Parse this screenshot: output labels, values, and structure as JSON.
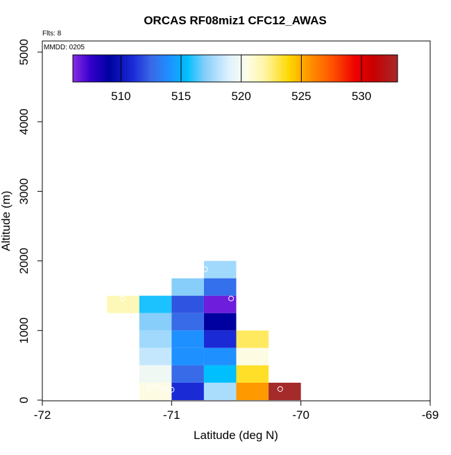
{
  "chart_data": {
    "type": "heatmap",
    "title": "ORCAS RF08miz1 CFC12_AWAS",
    "xlabel": "Latitude (deg N)",
    "ylabel": "Altitude (m)",
    "xlim": [
      -72,
      -69
    ],
    "ylim": [
      0,
      5200
    ],
    "x_ticks": [
      -72,
      -71,
      -70,
      -69
    ],
    "x_tick_labels": [
      "-72",
      "-71",
      "-70",
      "-69"
    ],
    "y_ticks": [
      0,
      1000,
      2000,
      3000,
      4000,
      5000
    ],
    "y_tick_labels": [
      "0",
      "1000",
      "2000",
      "3000",
      "4000",
      "5000"
    ],
    "annotations": {
      "flights": "Flts: 8",
      "date": "MMDD: 0205"
    },
    "colorbar": {
      "range": [
        506,
        533
      ],
      "ticks": [
        510,
        515,
        520,
        525,
        530
      ],
      "tick_labels": [
        "510",
        "515",
        "520",
        "525",
        "530"
      ],
      "stops": [
        {
          "value": 506,
          "color": "#8a2be2"
        },
        {
          "value": 507.5,
          "color": "#3300cc"
        },
        {
          "value": 509,
          "color": "#0000a0"
        },
        {
          "value": 511,
          "color": "#1a2bd6"
        },
        {
          "value": 512.5,
          "color": "#3a68e6"
        },
        {
          "value": 514,
          "color": "#1e90ff"
        },
        {
          "value": 515.5,
          "color": "#00bfff"
        },
        {
          "value": 517,
          "color": "#87cefa"
        },
        {
          "value": 519,
          "color": "#dff2ff"
        },
        {
          "value": 520.5,
          "color": "#fdfde8"
        },
        {
          "value": 522,
          "color": "#fff5a0"
        },
        {
          "value": 524,
          "color": "#ffd700"
        },
        {
          "value": 525.5,
          "color": "#ff9900"
        },
        {
          "value": 527.5,
          "color": "#ff5500"
        },
        {
          "value": 529.5,
          "color": "#ee0000"
        },
        {
          "value": 531,
          "color": "#c80000"
        },
        {
          "value": 533,
          "color": "#a52a2a"
        }
      ]
    },
    "bin_size": {
      "lat": 0.25,
      "alt": 250
    },
    "cells": [
      {
        "lat": -71.375,
        "alt": 1375,
        "value": 521.5
      },
      {
        "lat": -71.125,
        "alt": 1375,
        "value": 515.8
      },
      {
        "lat": -71.125,
        "alt": 1125,
        "value": 517.0
      },
      {
        "lat": -71.125,
        "alt": 875,
        "value": 517.6
      },
      {
        "lat": -71.125,
        "alt": 625,
        "value": 518.4
      },
      {
        "lat": -71.125,
        "alt": 375,
        "value": 519.8
      },
      {
        "lat": -71.125,
        "alt": 125,
        "value": 520.6
      },
      {
        "lat": -70.875,
        "alt": 1625,
        "value": 517.0
      },
      {
        "lat": -70.875,
        "alt": 1375,
        "value": 512.0
      },
      {
        "lat": -70.875,
        "alt": 1125,
        "value": 512.6
      },
      {
        "lat": -70.875,
        "alt": 875,
        "value": 514.0
      },
      {
        "lat": -70.875,
        "alt": 625,
        "value": 514.0
      },
      {
        "lat": -70.875,
        "alt": 375,
        "value": 512.6
      },
      {
        "lat": -70.875,
        "alt": 125,
        "value": 511.0
      },
      {
        "lat": -70.625,
        "alt": 1875,
        "value": 517.6
      },
      {
        "lat": -70.625,
        "alt": 1625,
        "value": 512.8
      },
      {
        "lat": -70.625,
        "alt": 1375,
        "value": 506.5
      },
      {
        "lat": -70.625,
        "alt": 1125,
        "value": 509.0
      },
      {
        "lat": -70.625,
        "alt": 875,
        "value": 511.0
      },
      {
        "lat": -70.625,
        "alt": 625,
        "value": 514.0
      },
      {
        "lat": -70.625,
        "alt": 375,
        "value": 515.5
      },
      {
        "lat": -70.625,
        "alt": 125,
        "value": 517.8
      },
      {
        "lat": -70.375,
        "alt": 875,
        "value": 522.8
      },
      {
        "lat": -70.375,
        "alt": 625,
        "value": 520.6
      },
      {
        "lat": -70.375,
        "alt": 375,
        "value": 523.5
      },
      {
        "lat": -70.375,
        "alt": 125,
        "value": 525.5
      },
      {
        "lat": -70.125,
        "alt": 125,
        "value": 533.0
      }
    ],
    "markers": [
      {
        "lat": -70.74,
        "alt": 1880
      },
      {
        "lat": -70.54,
        "alt": 1460
      },
      {
        "lat": -71.38,
        "alt": 1460
      },
      {
        "lat": -71.18,
        "alt": 170
      },
      {
        "lat": -71.15,
        "alt": 200
      },
      {
        "lat": -71.1,
        "alt": 180
      },
      {
        "lat": -71.05,
        "alt": 160
      },
      {
        "lat": -71.0,
        "alt": 150
      },
      {
        "lat": -70.16,
        "alt": 160
      }
    ]
  }
}
